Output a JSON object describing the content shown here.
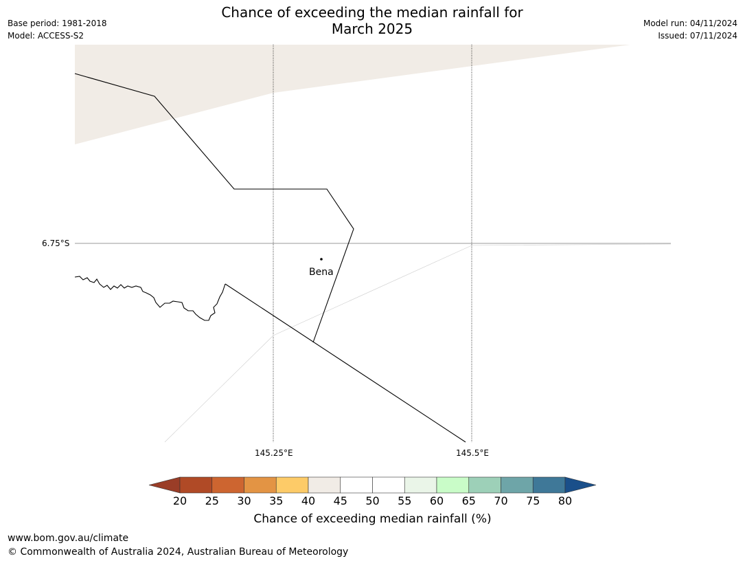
{
  "header": {
    "title_line1": "Chance of exceeding the median rainfall for",
    "title_line2": "March 2025",
    "base_period": "Base period: 1981-2018",
    "model": "Model: ACCESS-S2",
    "model_run": "Model run: 04/11/2024",
    "issued": "Issued: 07/11/2024"
  },
  "map": {
    "land_color": "#f1ece6",
    "latitude_labels": [
      "6.75°S"
    ],
    "longitude_labels": [
      "145.25°E",
      "145.5°E"
    ],
    "towns": [
      {
        "name": "Bena"
      }
    ]
  },
  "colorbar": {
    "label": "Chance of exceeding median rainfall (%)",
    "ticks": [
      "20",
      "25",
      "30",
      "35",
      "40",
      "45",
      "50",
      "55",
      "60",
      "65",
      "70",
      "75",
      "80"
    ],
    "under_color": "#9a3d27",
    "over_color": "#1a4f8a",
    "colors": [
      "#b04a26",
      "#cd6530",
      "#e39444",
      "#fdcb68",
      "#f1ece6",
      "#ffffff",
      "#ffffff",
      "#eaf5e8",
      "#c9fcc8",
      "#9dd0b8",
      "#6ea5a8",
      "#3f7898"
    ]
  },
  "footer": {
    "url": "www.bom.gov.au/climate",
    "copyright": "© Commonwealth of Australia 2024, Australian Bureau of Meteorology"
  }
}
